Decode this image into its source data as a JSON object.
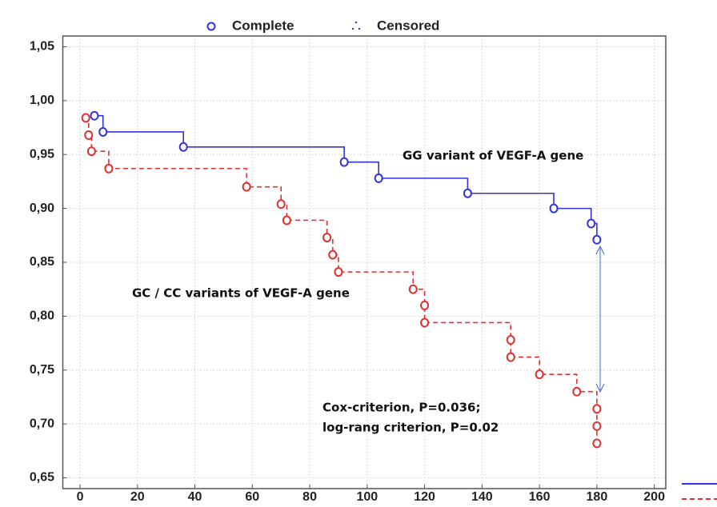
{
  "chart_data": {
    "type": "step",
    "legend": [
      "Complete",
      "Censored"
    ],
    "annotations": [
      "GG variant of VEGF-A gene",
      "GC / CC  variants of VEGF-A gene",
      "Cox-criterion, P=0.036;",
      "log-rang criterion, P=0.02"
    ],
    "series": [
      {
        "color": "#3333dd",
        "dash": false,
        "x": [
          5,
          8,
          36,
          92,
          104,
          135,
          165,
          178,
          180
        ],
        "values": [
          0.986,
          0.971,
          0.957,
          0.943,
          0.928,
          0.914,
          0.9,
          0.886,
          0.871
        ]
      },
      {
        "color": "#e03030",
        "dash": true,
        "x": [
          2,
          3,
          4,
          10,
          58,
          70,
          72,
          86,
          88,
          90,
          116,
          120,
          120,
          150,
          150,
          160,
          173,
          180,
          180,
          180
        ],
        "values": [
          0.984,
          0.968,
          0.953,
          0.937,
          0.92,
          0.904,
          0.889,
          0.873,
          0.857,
          0.841,
          0.825,
          0.81,
          0.794,
          0.778,
          0.762,
          0.746,
          0.73,
          0.714,
          0.698,
          0.682
        ]
      }
    ],
    "xlim": [
      -6,
      204
    ],
    "xticks": [
      0,
      20,
      40,
      60,
      80,
      100,
      120,
      140,
      160,
      180,
      200
    ],
    "ylim": [
      0.64,
      1.06
    ],
    "yticks": [
      {
        "value": 0.65,
        "label": "0,65"
      },
      {
        "value": 0.7,
        "label": "0,70"
      },
      {
        "value": 0.75,
        "label": "0,75"
      },
      {
        "value": 0.8,
        "label": "0,80"
      },
      {
        "value": 0.85,
        "label": "0,85"
      },
      {
        "value": 0.9,
        "label": "0,90"
      },
      {
        "value": 0.95,
        "label": "0,95"
      },
      {
        "value": 1.0,
        "label": "1,00"
      },
      {
        "value": 1.05,
        "label": "1,05"
      }
    ],
    "grid": true
  }
}
